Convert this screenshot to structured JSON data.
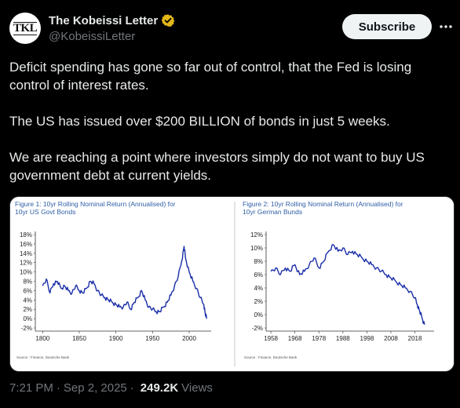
{
  "author": {
    "name": "The Kobeissi Letter",
    "handle": "@KobeissiLetter",
    "avatar_text": "TKL",
    "verified_color": "#e2b719"
  },
  "actions": {
    "subscribe_label": "Subscribe"
  },
  "tweet": {
    "paragraphs": [
      "Deficit spending has gone so far out of control, that the Fed is losing control of interest rates.",
      "The US has issued over $200 BILLION of bonds in just 5 weeks.",
      "We are reaching a point where investors simply do not want to buy US government debt at current yields."
    ]
  },
  "meta": {
    "time": "7:21 PM",
    "date": "Sep 2, 2025",
    "views_count": "249.2K",
    "views_label": "Views",
    "separator": "·"
  },
  "chart_data": [
    {
      "type": "line",
      "title": "Figure 1: 10yr Rolling Nominal Return (Annualised) for 10yr US Govt Bonds",
      "source": "Source : Finaeon, Deutsche Bank",
      "x_ticks": [
        "1800",
        "1850",
        "1900",
        "1950",
        "2000"
      ],
      "y_ticks": [
        "-2%",
        "0%",
        "2%",
        "4%",
        "6%",
        "8%",
        "10%",
        "12%",
        "14%",
        "16%",
        "18%"
      ],
      "xlim": [
        1790,
        2030
      ],
      "ylim": [
        -2,
        18
      ],
      "color": "#1a2ea8",
      "series": [
        {
          "x": [
            1800,
            1805,
            1810,
            1815,
            1820,
            1825,
            1830,
            1835,
            1840,
            1845,
            1850,
            1855,
            1860,
            1865,
            1870,
            1875,
            1880,
            1885,
            1890,
            1895,
            1900,
            1905,
            1910,
            1915,
            1920,
            1925,
            1930,
            1935,
            1940,
            1945,
            1950,
            1955,
            1960,
            1965,
            1970,
            1975,
            1980,
            1985,
            1990,
            1993,
            1995,
            2000,
            2005,
            2010,
            2015,
            2020,
            2022,
            2024
          ],
          "y": [
            7,
            8.5,
            5.5,
            7.5,
            8,
            6.5,
            7,
            6,
            5.5,
            7,
            6,
            5.5,
            6.5,
            8,
            7.5,
            6,
            5,
            4.5,
            4,
            3.5,
            3,
            2.5,
            2.5,
            3.5,
            2,
            3.5,
            4.5,
            6,
            4,
            2.5,
            2,
            1.5,
            1.5,
            2.5,
            3.5,
            5,
            7,
            9,
            12.5,
            15.5,
            13,
            10,
            8,
            6.5,
            4.5,
            3,
            1,
            0
          ]
        }
      ]
    },
    {
      "type": "line",
      "title": "Figure 2: 10yr Rolling Nominal Return (Annualised) for 10yr German Bunds",
      "source": "Source : Finaeon, Deutsche Bank",
      "x_ticks": [
        "1958",
        "1968",
        "1978",
        "1988",
        "1998",
        "2008",
        "2018"
      ],
      "y_ticks": [
        "-2%",
        "0%",
        "2%",
        "4%",
        "6%",
        "8%",
        "10%",
        "12%"
      ],
      "xlim": [
        1956,
        2026
      ],
      "ylim": [
        -2,
        12
      ],
      "color": "#1a2ea8",
      "series": [
        {
          "x": [
            1958,
            1960,
            1962,
            1964,
            1966,
            1968,
            1970,
            1972,
            1974,
            1976,
            1978,
            1980,
            1982,
            1984,
            1986,
            1988,
            1990,
            1992,
            1994,
            1996,
            1998,
            2000,
            2002,
            2004,
            2006,
            2008,
            2010,
            2012,
            2014,
            2016,
            2018,
            2019,
            2020,
            2021,
            2022
          ],
          "y": [
            6.5,
            7,
            6,
            7,
            6.5,
            7.5,
            6,
            6.5,
            7.5,
            8.5,
            7,
            8,
            9.5,
            10.5,
            9.5,
            10,
            9,
            9.5,
            9,
            8.5,
            8,
            7.5,
            7,
            6.5,
            6,
            5.5,
            5,
            4.5,
            4,
            3.5,
            2.5,
            1.5,
            0.5,
            -0.5,
            -1.5
          ]
        }
      ]
    }
  ]
}
